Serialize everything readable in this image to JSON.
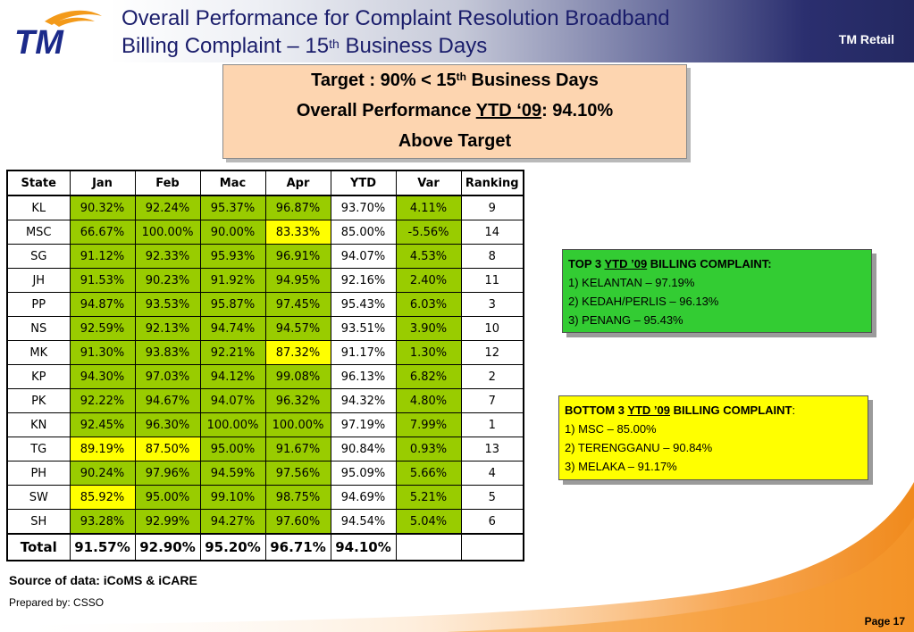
{
  "header": {
    "title_line1": "Overall Performance for Complaint Resolution Broadband",
    "title_line2_pre": "Billing Complaint – 15",
    "title_line2_sup": "th",
    "title_line2_post": " Business Days",
    "brand": "TM Retail",
    "logo_text": "TM"
  },
  "target_box": {
    "target_pre": "Target : 90% < 15",
    "target_sup": "th",
    "target_post": " Business Days",
    "overall_pre": "Overall Performance ",
    "overall_ytd": "YTD ‘09",
    "overall_post": ": 94.10%",
    "status": "Above Target"
  },
  "table": {
    "headers": [
      "State",
      "Jan",
      "Feb",
      "Mac",
      "Apr",
      "YTD",
      "Var",
      "Ranking"
    ],
    "rows": [
      {
        "state": "KL",
        "jan": "90.32%",
        "feb": "92.24%",
        "mac": "95.37%",
        "apr": "96.87%",
        "ytd": "93.70%",
        "var": "4.11%",
        "rank": "9"
      },
      {
        "state": "MSC",
        "jan": "66.67%",
        "feb": "100.00%",
        "mac": "90.00%",
        "apr": "83.33%",
        "ytd": "85.00%",
        "var": "-5.56%",
        "rank": "14"
      },
      {
        "state": "SG",
        "jan": "91.12%",
        "feb": "92.33%",
        "mac": "95.93%",
        "apr": "96.91%",
        "ytd": "94.07%",
        "var": "4.53%",
        "rank": "8"
      },
      {
        "state": "JH",
        "jan": "91.53%",
        "feb": "90.23%",
        "mac": "91.92%",
        "apr": "94.95%",
        "ytd": "92.16%",
        "var": "2.40%",
        "rank": "11"
      },
      {
        "state": "PP",
        "jan": "94.87%",
        "feb": "93.53%",
        "mac": "95.87%",
        "apr": "97.45%",
        "ytd": "95.43%",
        "var": "6.03%",
        "rank": "3"
      },
      {
        "state": "NS",
        "jan": "92.59%",
        "feb": "92.13%",
        "mac": "94.74%",
        "apr": "94.57%",
        "ytd": "93.51%",
        "var": "3.90%",
        "rank": "10"
      },
      {
        "state": "MK",
        "jan": "91.30%",
        "feb": "93.83%",
        "mac": "92.21%",
        "apr": "87.32%",
        "ytd": "91.17%",
        "var": "1.30%",
        "rank": "12"
      },
      {
        "state": "KP",
        "jan": "94.30%",
        "feb": "97.03%",
        "mac": "94.12%",
        "apr": "99.08%",
        "ytd": "96.13%",
        "var": "6.82%",
        "rank": "2"
      },
      {
        "state": "PK",
        "jan": "92.22%",
        "feb": "94.67%",
        "mac": "94.07%",
        "apr": "96.32%",
        "ytd": "94.32%",
        "var": "4.80%",
        "rank": "7"
      },
      {
        "state": "KN",
        "jan": "92.45%",
        "feb": "96.30%",
        "mac": "100.00%",
        "apr": "100.00%",
        "ytd": "97.19%",
        "var": "7.99%",
        "rank": "1"
      },
      {
        "state": "TG",
        "jan": "89.19%",
        "feb": "87.50%",
        "mac": "95.00%",
        "apr": "91.67%",
        "ytd": "90.84%",
        "var": "0.93%",
        "rank": "13"
      },
      {
        "state": "PH",
        "jan": "90.24%",
        "feb": "97.96%",
        "mac": "94.59%",
        "apr": "97.56%",
        "ytd": "95.09%",
        "var": "5.66%",
        "rank": "4"
      },
      {
        "state": "SW",
        "jan": "85.92%",
        "feb": "95.00%",
        "mac": "99.10%",
        "apr": "98.75%",
        "ytd": "94.69%",
        "var": "5.21%",
        "rank": "5"
      },
      {
        "state": "SH",
        "jan": "93.28%",
        "feb": "92.99%",
        "mac": "94.27%",
        "apr": "97.60%",
        "ytd": "94.54%",
        "var": "5.04%",
        "rank": "6"
      }
    ],
    "total": {
      "label": "Total",
      "jan": "91.57%",
      "feb": "92.90%",
      "mac": "95.20%",
      "apr": "96.71%",
      "ytd": "94.10%",
      "var": "",
      "rank": ""
    }
  },
  "top3": {
    "heading_pre": "TOP 3 ",
    "heading_ytd": "YTD ’09",
    "heading_post": " BILLING COMPLAINT:",
    "items": [
      "1) KELANTAN – 97.19%",
      "2) KEDAH/PERLIS – 96.13%",
      "3) PENANG – 95.43%"
    ]
  },
  "bottom3": {
    "heading_pre": "BOTTOM 3 ",
    "heading_ytd": "YTD ’09",
    "heading_post": " BILLING COMPLAINT",
    "heading_colon": ":",
    "items": [
      "1) MSC – 85.00%",
      "2) TERENGGANU – 90.84%",
      "3) MELAKA – 91.17%"
    ]
  },
  "footer": {
    "source": "Source of data: iCoMS & iCARE",
    "prepared": "Prepared by: CSSO",
    "page": "Page 17"
  },
  "colors": {
    "green_cell": "#99cc00",
    "yellow_cell": "#ffff00",
    "top_box": "#33cc33",
    "bottom_box": "#ffff00",
    "target_box": "#fdd5b0",
    "title_blue": "#1a1d6b",
    "status_blue": "#0d0d7a",
    "logo_blue": "#1b2a8a",
    "logo_orange": "#f39a1a"
  }
}
